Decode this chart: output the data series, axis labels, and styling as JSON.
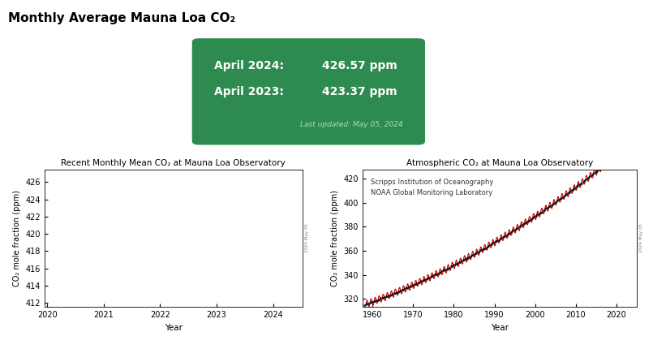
{
  "title": "Monthly Average Mauna Loa CO₂",
  "box_bg_color": "#2e8b50",
  "left_plot_title": "Recent Monthly Mean CO₂ at Mauna Loa Observatory",
  "right_plot_title": "Atmospheric CO₂ at Mauna Loa Observatory",
  "ylabel": "CO₂ mole fraction (ppm)",
  "xlabel": "Year",
  "right_annotation": "Scripps Institution of Oceanography\nNOAA Global Monitoring Laboratory",
  "left_ylim": [
    411.5,
    427.5
  ],
  "left_yticks": [
    412,
    414,
    416,
    418,
    420,
    422,
    424,
    426
  ],
  "right_ylim": [
    313,
    428
  ],
  "right_yticks": [
    320,
    340,
    360,
    380,
    400,
    420
  ],
  "red_color": "#cc0000",
  "black_color": "#111111",
  "bg_color": "#ffffff"
}
